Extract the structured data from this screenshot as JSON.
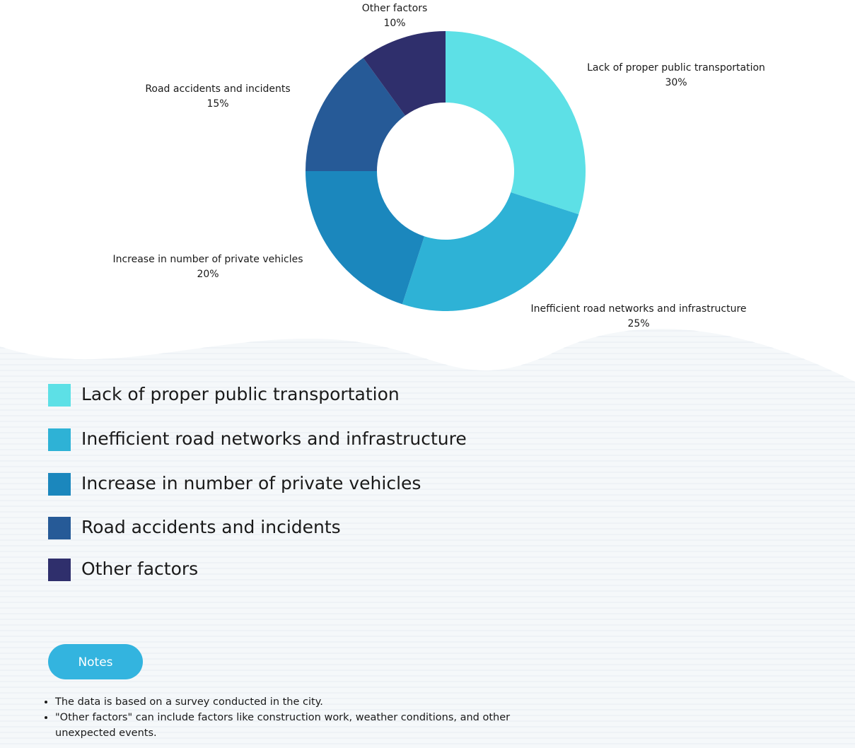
{
  "chart_data": {
    "type": "pie",
    "donut": true,
    "categories": [
      "Lack of proper public transportation",
      "Inefficient road networks and infrastructure",
      "Increase in number of private vehicles",
      "Road accidents and incidents",
      "Other factors"
    ],
    "values": [
      30,
      25,
      20,
      15,
      10
    ],
    "value_labels": [
      "30%",
      "25%",
      "20%",
      "15%",
      "10%"
    ],
    "colors": [
      "#5de0e6",
      "#2eb2d6",
      "#1b87bd",
      "#265a97",
      "#2f2f6c"
    ]
  },
  "notes": {
    "title": "Notes",
    "items": [
      "The data is based on a survey conducted in the city.",
      "\"Other factors\" can include factors like construction work, weather conditions, and other unexpected events."
    ]
  }
}
